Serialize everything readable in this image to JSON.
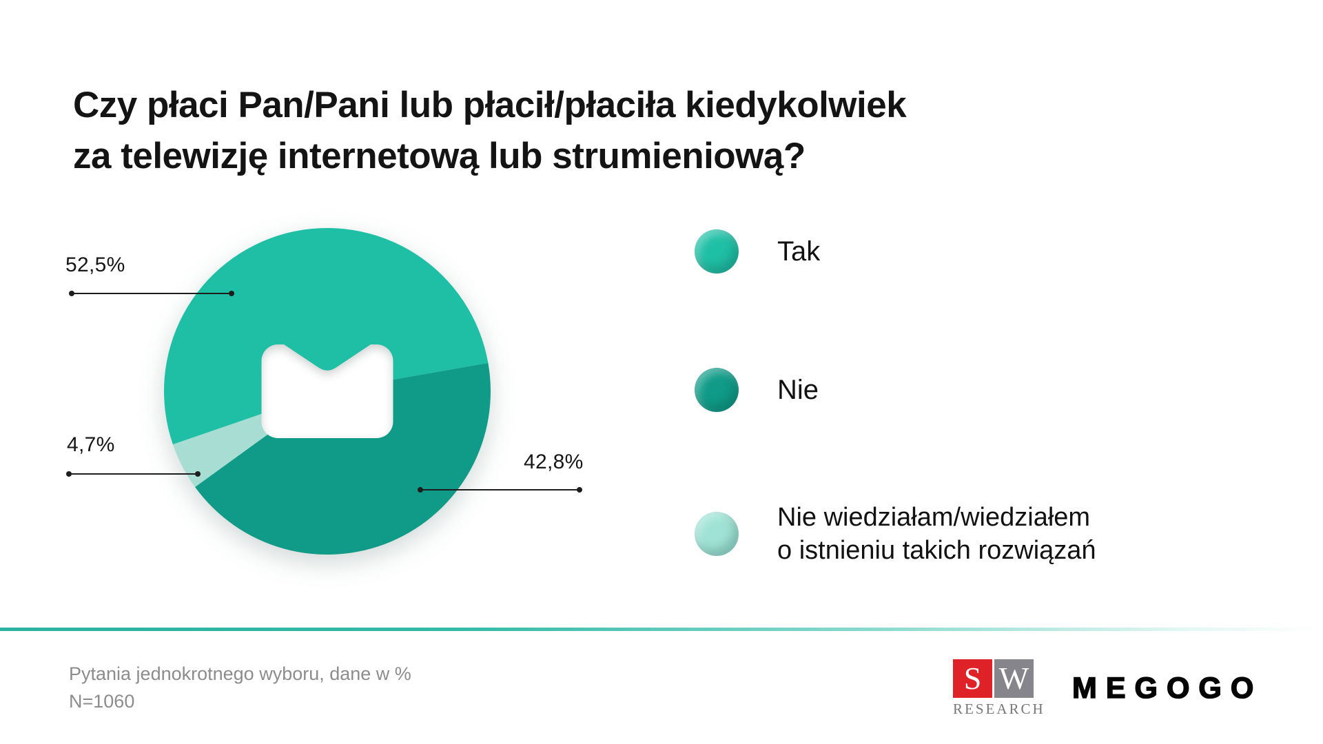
{
  "title": {
    "line1": "Czy płaci Pan/Pani lub płacił/płaciła kiedykolwiek",
    "line2": "za telewizję internetową lub strumieniową?"
  },
  "chart_data": {
    "type": "pie",
    "title": "Czy płaci Pan/Pani lub płacił/płaciła kiedykolwiek za telewizję internetową lub strumieniową?",
    "unit": "%",
    "start_angle_deg_cw_from_top": 251,
    "slices": [
      {
        "label": "Tak",
        "value": 52.5,
        "display_value": "52,5%",
        "color": "#1fbfa6"
      },
      {
        "label": "Nie",
        "value": 42.8,
        "display_value": "42,8%",
        "color": "#0f9b88"
      },
      {
        "label": "Nie wiedziałam/wiedziałem o istnieniu takich rozwiązań",
        "value": 4.7,
        "display_value": "4,7%",
        "color": "#a7ddd2"
      }
    ],
    "legend_position": "right",
    "center_mark": "megogo-logo-mark"
  },
  "legend": {
    "items": [
      {
        "label": "Tak",
        "color": "#1fbfa6"
      },
      {
        "label": "Nie",
        "color": "#0f9b88"
      },
      {
        "label": "Nie wiedziałam/wiedziałem\no istnieniu takich rozwiązań",
        "color": "#9fe3d6"
      }
    ]
  },
  "footer": {
    "note_line1": "Pytania jednokrotnego wyboru, dane w %",
    "note_line2": "N=1060"
  },
  "logos": {
    "sw_research": {
      "letter_s": "S",
      "letter_w": "W",
      "caption": "RESEARCH",
      "red": "#df2128",
      "gray": "#85858b"
    },
    "megogo": {
      "wordmark": "MEGOGO"
    }
  }
}
